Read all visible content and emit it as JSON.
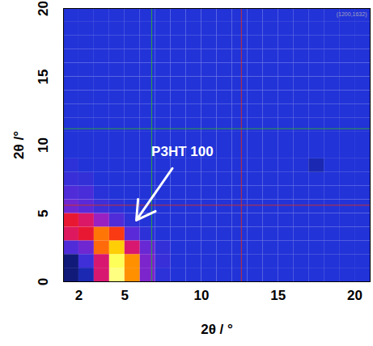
{
  "chart_data": {
    "type": "heatmap",
    "x_label": "2θ / °",
    "y_label": "2θ /°",
    "xlim": [
      1,
      21
    ],
    "ylim": [
      0,
      20
    ],
    "xticks": [
      2,
      5,
      10,
      15,
      20
    ],
    "yticks": [
      0,
      5,
      10,
      15,
      20
    ],
    "zlim": [
      0,
      100
    ],
    "cells": {
      "x0": 1,
      "y0": 0,
      "step": 1,
      "values": [
        [
          5,
          8,
          40,
          95,
          70,
          25,
          12,
          10,
          10,
          10,
          10,
          10,
          10,
          10,
          10,
          10,
          10,
          10,
          10,
          10
        ],
        [
          5,
          15,
          40,
          92,
          70,
          25,
          14,
          10,
          10,
          10,
          10,
          10,
          10,
          10,
          10,
          10,
          10,
          10,
          10,
          10
        ],
        [
          18,
          23,
          64,
          81,
          40,
          22,
          13,
          10,
          10,
          10,
          10,
          10,
          10,
          10,
          10,
          10,
          10,
          10,
          10,
          10
        ],
        [
          42,
          47,
          66,
          56,
          20,
          12,
          10,
          10,
          10,
          10,
          10,
          10,
          10,
          10,
          10,
          10,
          10,
          10,
          10,
          10
        ],
        [
          47,
          41,
          29,
          18,
          12,
          10,
          10,
          10,
          10,
          10,
          10,
          10,
          10,
          10,
          10,
          10,
          10,
          10,
          10,
          10
        ],
        [
          23,
          20,
          15,
          12,
          10,
          10,
          10,
          10,
          10,
          10,
          10,
          10,
          10,
          10,
          10,
          10,
          10,
          10,
          10,
          10
        ],
        [
          18,
          17,
          11,
          10,
          10,
          10,
          10,
          10,
          10,
          10,
          10,
          10,
          10,
          10,
          10,
          10,
          10,
          10,
          10,
          10
        ],
        [
          14,
          13,
          10,
          10,
          10,
          10,
          10,
          10,
          10,
          10,
          10,
          10,
          10,
          10,
          10,
          10,
          10,
          10,
          10,
          10
        ],
        [
          12,
          10,
          10,
          10,
          10,
          10,
          10,
          10,
          10,
          10,
          10,
          10,
          10,
          10,
          10,
          10,
          8,
          10,
          10,
          10
        ],
        [
          10,
          10,
          10,
          10,
          10,
          10,
          10,
          10,
          10,
          10,
          10,
          10,
          10,
          10,
          10,
          10,
          10,
          10,
          10,
          10
        ],
        [
          10,
          10,
          10,
          10,
          10,
          10,
          10,
          10,
          10,
          10,
          10,
          10,
          10,
          10,
          10,
          10,
          10,
          10,
          10,
          10
        ],
        [
          10,
          10,
          10,
          10,
          10,
          10,
          10,
          10,
          10,
          10,
          10,
          10,
          10,
          10,
          10,
          10,
          10,
          10,
          10,
          10
        ],
        [
          10,
          10,
          10,
          10,
          10,
          10,
          10,
          10,
          10,
          10,
          10,
          10,
          10,
          10,
          10,
          10,
          10,
          10,
          10,
          10
        ],
        [
          10,
          10,
          10,
          10,
          10,
          10,
          10,
          10,
          10,
          10,
          10,
          10,
          10,
          10,
          10,
          10,
          10,
          10,
          10,
          10
        ],
        [
          10,
          10,
          10,
          10,
          10,
          10,
          10,
          10,
          10,
          10,
          10,
          10,
          10,
          10,
          10,
          10,
          10,
          10,
          10,
          10
        ],
        [
          10,
          10,
          10,
          10,
          10,
          10,
          10,
          10,
          10,
          10,
          10,
          10,
          10,
          10,
          10,
          10,
          10,
          10,
          10,
          10
        ],
        [
          10,
          10,
          10,
          10,
          10,
          10,
          10,
          10,
          10,
          10,
          10,
          10,
          10,
          10,
          10,
          10,
          10,
          10,
          10,
          10
        ],
        [
          10,
          10,
          10,
          10,
          10,
          10,
          10,
          10,
          10,
          10,
          10,
          10,
          10,
          10,
          10,
          10,
          10,
          10,
          10,
          10
        ],
        [
          10,
          10,
          10,
          10,
          10,
          10,
          10,
          10,
          10,
          10,
          10,
          10,
          10,
          10,
          10,
          10,
          10,
          10,
          10,
          10
        ],
        [
          10,
          10,
          10,
          10,
          10,
          10,
          10,
          10,
          10,
          10,
          10,
          10,
          10,
          10,
          10,
          10,
          10,
          10,
          10,
          10
        ]
      ]
    },
    "vlines": [
      {
        "value": 6.75,
        "color": "#2fa040"
      },
      {
        "value": 12.6,
        "color": "#c83030"
      }
    ],
    "hlines": [
      {
        "value": 11.2,
        "color": "#2fa040"
      },
      {
        "value": 5.6,
        "color": "#c83030"
      }
    ],
    "annotation": {
      "text": "P3HT 100",
      "x": 8.75,
      "y": 9.5,
      "arrow": {
        "from": [
          8.1,
          8.3
        ],
        "to": [
          5.75,
          4.5
        ]
      }
    },
    "corner_text": "(1200,1632)"
  }
}
